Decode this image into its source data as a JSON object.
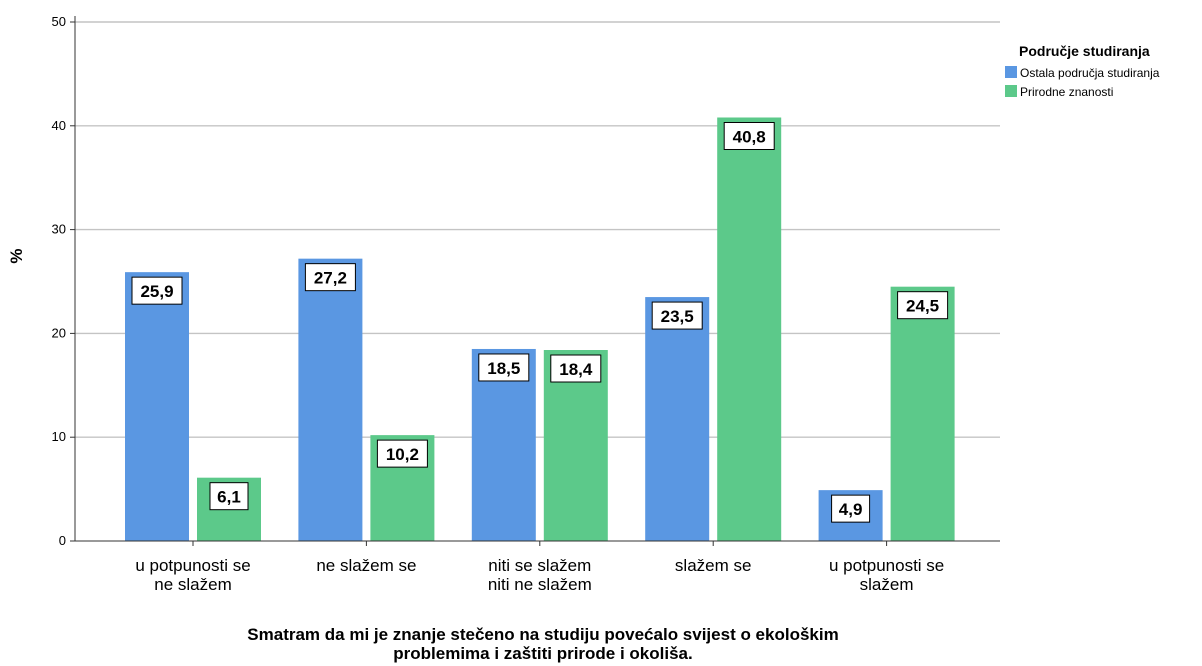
{
  "chart_data": {
    "type": "bar",
    "title": "",
    "xlabel": "Smatram da mi je znanje stečeno na studiju povećalo svijest o ekološkim problemima i zaštiti prirode i okoliša.",
    "ylabel": "%",
    "ylim": [
      0,
      50
    ],
    "yticks": [
      0,
      10,
      20,
      30,
      40,
      50
    ],
    "grid": true,
    "legend_position": "top-right",
    "legend_title": "Područje studiranja",
    "categories": [
      [
        "u potpunosti se",
        "ne slažem"
      ],
      [
        "ne slažem se"
      ],
      [
        "niti se slažem",
        "niti ne slažem"
      ],
      [
        "slažem se"
      ],
      [
        "u potpunosti se",
        "slažem"
      ]
    ],
    "series": [
      {
        "name": "Ostala područja studiranja",
        "color": "#5a97e2",
        "values": [
          25.9,
          27.2,
          18.5,
          23.5,
          4.9
        ],
        "labels": [
          "25,9",
          "27,2",
          "18,5",
          "23,5",
          "4,9"
        ]
      },
      {
        "name": "Prirodne znanosti",
        "color": "#5cc98a",
        "values": [
          6.1,
          10.2,
          18.4,
          40.8,
          24.5
        ],
        "labels": [
          "6,1",
          "10,2",
          "18,4",
          "40,8",
          "24,5"
        ]
      }
    ]
  }
}
